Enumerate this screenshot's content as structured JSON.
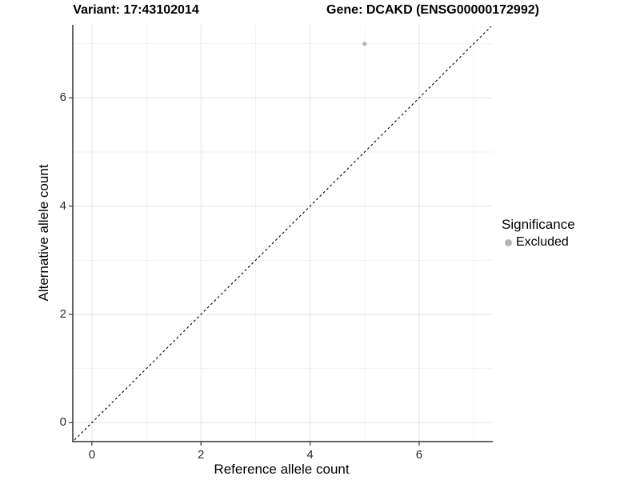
{
  "titles": {
    "left": "Variant: 17:43102014",
    "right": "Gene: DCAKD (ENSG00000172992)"
  },
  "chart_data": {
    "type": "scatter",
    "title_left": "Variant: 17:43102014",
    "title_right": "Gene: DCAKD (ENSG00000172992)",
    "xlabel": "Reference allele count",
    "ylabel": "Alternative allele count",
    "xlim": [
      -0.35,
      7.35
    ],
    "ylim": [
      -0.35,
      7.35
    ],
    "x_ticks": [
      0,
      2,
      4,
      6
    ],
    "y_ticks": [
      0,
      2,
      4,
      6
    ],
    "x_minor_ticks": [
      1,
      3,
      5,
      7
    ],
    "y_minor_ticks": [
      1,
      3,
      5,
      7
    ],
    "grid": "on",
    "points": [
      {
        "x": 5,
        "y": 7,
        "series": "Excluded"
      }
    ],
    "identity_line": {
      "style": "dashed",
      "from": [
        -0.32,
        -0.32
      ],
      "to": [
        7.32,
        7.32
      ]
    },
    "legend": {
      "title": "Significance",
      "position": "right",
      "entries": [
        {
          "label": "Excluded",
          "color": "#b5b5b5"
        }
      ]
    }
  },
  "colors": {
    "background": "#ffffff",
    "grid_major": "#e4e4e4",
    "grid_minor": "#f2f2f2",
    "axis_line": "#333333",
    "tick_mark": "#333333",
    "dashed_line": "#000000",
    "point": "#b5b5b5",
    "text": "#000000",
    "tick_text": "#2b2b2b"
  }
}
